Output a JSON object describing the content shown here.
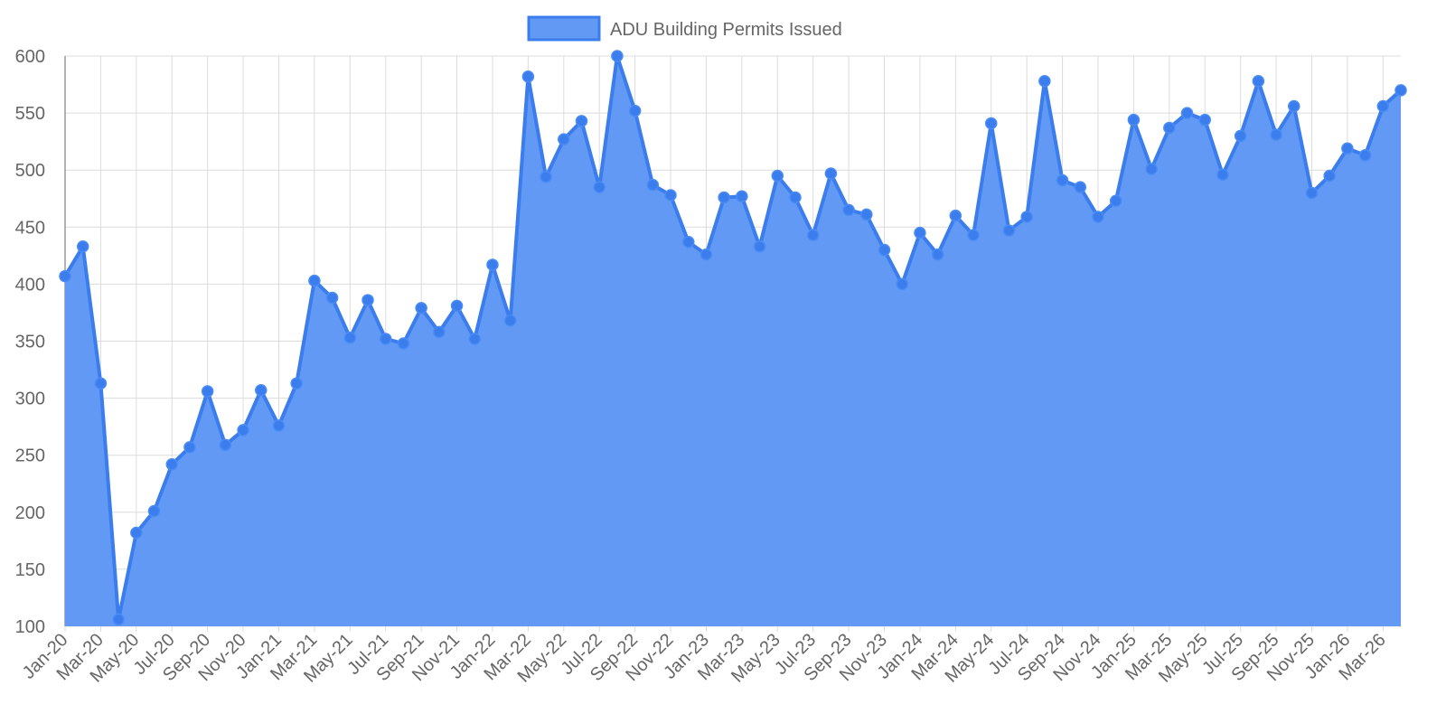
{
  "chart_data": {
    "type": "line",
    "fill": true,
    "categories": [
      "Jan-20",
      null,
      "Mar-20",
      null,
      "May-20",
      null,
      "Jul-20",
      null,
      "Sep-20",
      null,
      "Nov-20",
      null,
      "Jan-21",
      null,
      "Mar-21",
      null,
      "May-21",
      null,
      "Jul-21",
      null,
      "Sep-21",
      null,
      "Nov-21",
      null,
      "Jan-22",
      null,
      "Mar-22",
      null,
      "May-22",
      null,
      "Jul-22",
      null,
      "Sep-22",
      null,
      "Nov-22",
      null,
      "Jan-23",
      null,
      "Mar-23",
      null,
      "May-23",
      null,
      "Jul-23",
      null,
      "Sep-23",
      null,
      "Nov-23",
      null,
      "Jan-24",
      null,
      "Mar-24",
      null,
      "May-24",
      null,
      "Jul-24",
      null,
      "Sep-24",
      null,
      "Nov-24",
      null,
      "Jan-25",
      null,
      "Mar-25",
      null,
      "May-25",
      null,
      "Jul-25",
      null,
      "Sep-25",
      null,
      "Nov-25",
      null,
      "Jan-26",
      null,
      "Mar-26",
      null
    ],
    "series": [
      {
        "name": "ADU Building Permits Issued",
        "color": "#3b7ded",
        "fill_color": "#6199f5",
        "values": [
          407,
          433,
          313,
          106,
          182,
          201,
          242,
          257,
          306,
          259,
          272,
          307,
          276,
          313,
          403,
          388,
          353,
          386,
          352,
          348,
          379,
          358,
          381,
          352,
          417,
          368,
          582,
          494,
          527,
          543,
          485,
          600,
          552,
          487,
          478,
          437,
          426,
          476,
          477,
          433,
          495,
          476,
          443,
          497,
          465,
          461,
          430,
          400,
          445,
          426,
          460,
          443,
          541,
          447,
          459,
          578,
          491,
          485,
          459,
          473,
          544,
          501,
          537,
          550,
          544,
          496,
          530,
          578,
          531,
          556,
          480,
          495,
          519,
          513,
          556,
          570
        ]
      }
    ],
    "ylim": [
      100,
      600
    ],
    "yticks": [
      100,
      150,
      200,
      250,
      300,
      350,
      400,
      450,
      500,
      550,
      600
    ],
    "grid": true,
    "legend": "top"
  }
}
